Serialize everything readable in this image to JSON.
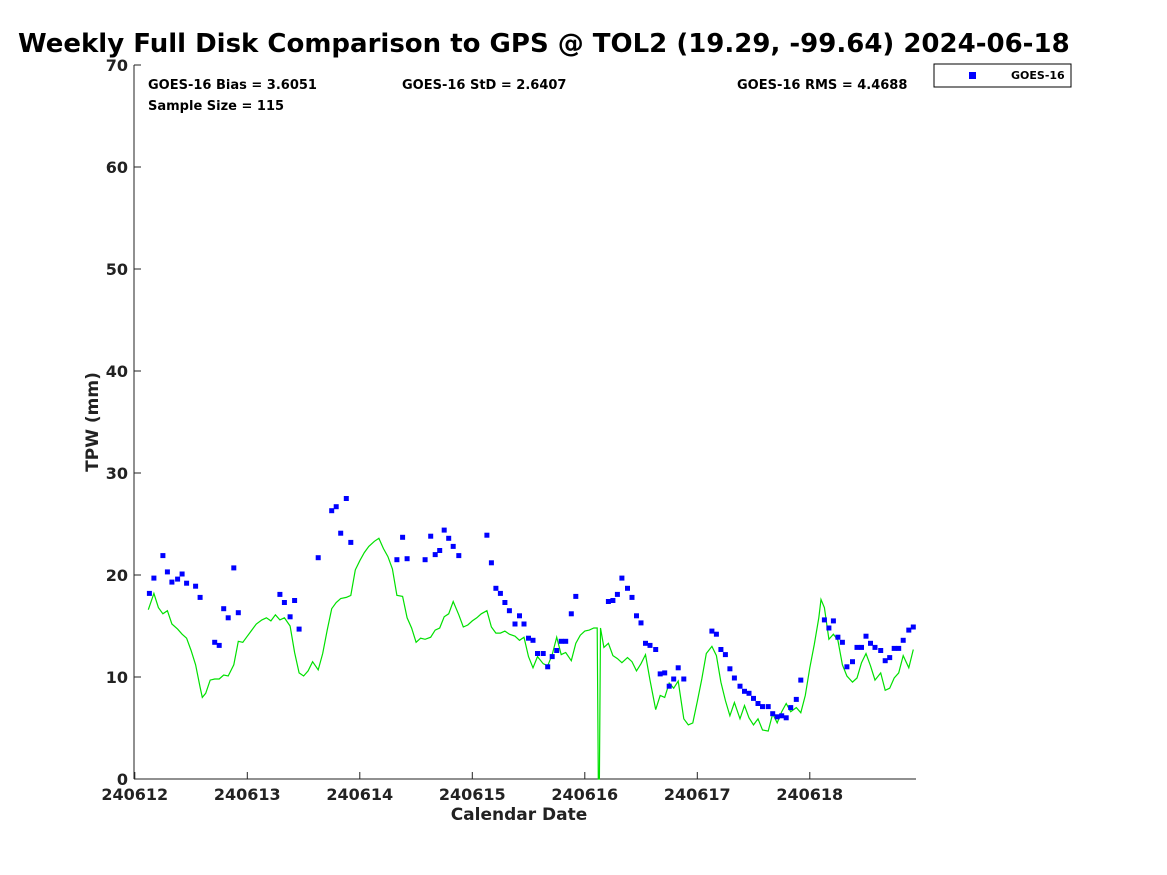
{
  "chart_data": {
    "type": "scatter",
    "title": "Weekly Full Disk Comparison to GPS @ TOL2 (19.29, -99.64) 2024-06-18",
    "xlabel": "Calendar Date",
    "ylabel": "TPW (mm)",
    "xlim": [
      240612,
      240619
    ],
    "ylim": [
      0,
      70
    ],
    "x_ticks": [
      "240612",
      "240613",
      "240614",
      "240615",
      "240616",
      "240617",
      "240618"
    ],
    "y_ticks": [
      "0",
      "10",
      "20",
      "30",
      "40",
      "50",
      "60",
      "70"
    ],
    "grid": false,
    "legend_position": "top-right outside plot",
    "stats": {
      "bias": "GOES-16 Bias = 3.6051",
      "std": "GOES-16 StD = 2.6407",
      "rms": "GOES-16 RMS = 4.4688",
      "sample": "Sample Size = 115"
    },
    "series": [
      {
        "name": "GOES-16",
        "kind": "scatter",
        "color": "#0000ff",
        "marker": "square",
        "points": [
          [
            0.13,
            18.2
          ],
          [
            0.17,
            19.7
          ],
          [
            0.25,
            21.9
          ],
          [
            0.29,
            20.3
          ],
          [
            0.33,
            19.3
          ],
          [
            0.38,
            19.6
          ],
          [
            0.42,
            20.1
          ],
          [
            0.46,
            19.2
          ],
          [
            0.54,
            18.9
          ],
          [
            0.58,
            17.8
          ],
          [
            0.71,
            13.4
          ],
          [
            0.75,
            13.1
          ],
          [
            0.79,
            16.7
          ],
          [
            0.83,
            15.8
          ],
          [
            0.88,
            20.7
          ],
          [
            0.92,
            16.3
          ],
          [
            1.29,
            18.1
          ],
          [
            1.33,
            17.3
          ],
          [
            1.38,
            15.9
          ],
          [
            1.42,
            17.5
          ],
          [
            1.46,
            14.7
          ],
          [
            1.63,
            21.7
          ],
          [
            1.75,
            26.3
          ],
          [
            1.79,
            26.7
          ],
          [
            1.83,
            24.1
          ],
          [
            1.88,
            27.5
          ],
          [
            1.92,
            23.2
          ],
          [
            2.33,
            21.5
          ],
          [
            2.38,
            23.7
          ],
          [
            2.42,
            21.6
          ],
          [
            2.58,
            21.5
          ],
          [
            2.63,
            23.8
          ],
          [
            2.67,
            22.0
          ],
          [
            2.71,
            22.4
          ],
          [
            2.75,
            24.4
          ],
          [
            2.79,
            23.6
          ],
          [
            2.83,
            22.8
          ],
          [
            2.88,
            21.9
          ],
          [
            3.13,
            23.9
          ],
          [
            3.17,
            21.2
          ],
          [
            3.21,
            18.7
          ],
          [
            3.25,
            18.2
          ],
          [
            3.29,
            17.3
          ],
          [
            3.33,
            16.5
          ],
          [
            3.38,
            15.2
          ],
          [
            3.42,
            16.0
          ],
          [
            3.46,
            15.2
          ],
          [
            3.5,
            13.8
          ],
          [
            3.54,
            13.6
          ],
          [
            3.58,
            12.3
          ],
          [
            3.63,
            12.3
          ],
          [
            3.67,
            11.0
          ],
          [
            3.71,
            12.0
          ],
          [
            3.75,
            12.6
          ],
          [
            3.79,
            13.5
          ],
          [
            3.83,
            13.5
          ],
          [
            3.88,
            16.2
          ],
          [
            3.92,
            17.9
          ],
          [
            4.21,
            17.4
          ],
          [
            4.25,
            17.5
          ],
          [
            4.29,
            18.1
          ],
          [
            4.33,
            19.7
          ],
          [
            4.38,
            18.7
          ],
          [
            4.42,
            17.8
          ],
          [
            4.46,
            16.0
          ],
          [
            4.5,
            15.3
          ],
          [
            4.54,
            13.3
          ],
          [
            4.58,
            13.1
          ],
          [
            4.63,
            12.7
          ],
          [
            4.67,
            10.3
          ],
          [
            4.71,
            10.4
          ],
          [
            4.75,
            9.1
          ],
          [
            4.79,
            9.8
          ],
          [
            4.83,
            10.9
          ],
          [
            4.88,
            9.8
          ],
          [
            5.13,
            14.5
          ],
          [
            5.17,
            14.2
          ],
          [
            5.21,
            12.7
          ],
          [
            5.25,
            12.2
          ],
          [
            5.29,
            10.8
          ],
          [
            5.33,
            9.9
          ],
          [
            5.38,
            9.1
          ],
          [
            5.42,
            8.6
          ],
          [
            5.46,
            8.4
          ],
          [
            5.5,
            7.9
          ],
          [
            5.54,
            7.4
          ],
          [
            5.58,
            7.1
          ],
          [
            5.63,
            7.1
          ],
          [
            5.67,
            6.4
          ],
          [
            5.71,
            6.1
          ],
          [
            5.75,
            6.2
          ],
          [
            5.79,
            6.0
          ],
          [
            5.83,
            7.0
          ],
          [
            5.88,
            7.8
          ],
          [
            5.92,
            9.7
          ],
          [
            6.13,
            15.6
          ],
          [
            6.17,
            14.8
          ],
          [
            6.21,
            15.5
          ],
          [
            6.25,
            13.9
          ],
          [
            6.29,
            13.4
          ],
          [
            6.33,
            11.0
          ],
          [
            6.38,
            11.5
          ],
          [
            6.42,
            12.9
          ],
          [
            6.46,
            12.9
          ],
          [
            6.5,
            14.0
          ],
          [
            6.54,
            13.3
          ],
          [
            6.58,
            12.9
          ],
          [
            6.63,
            12.6
          ],
          [
            6.67,
            11.6
          ],
          [
            6.71,
            11.9
          ],
          [
            6.75,
            12.8
          ],
          [
            6.79,
            12.8
          ],
          [
            6.83,
            13.6
          ],
          [
            6.88,
            14.6
          ],
          [
            6.92,
            14.9
          ]
        ]
      },
      {
        "name": "GPS",
        "kind": "line",
        "color": "#00e000",
        "points": [
          [
            0.12,
            16.6
          ],
          [
            0.17,
            18.2
          ],
          [
            0.21,
            16.8
          ],
          [
            0.25,
            16.2
          ],
          [
            0.29,
            16.5
          ],
          [
            0.33,
            15.2
          ],
          [
            0.38,
            14.7
          ],
          [
            0.42,
            14.2
          ],
          [
            0.46,
            13.8
          ],
          [
            0.5,
            12.6
          ],
          [
            0.54,
            11.2
          ],
          [
            0.58,
            9.0
          ],
          [
            0.6,
            8.0
          ],
          [
            0.63,
            8.4
          ],
          [
            0.67,
            9.7
          ],
          [
            0.71,
            9.8
          ],
          [
            0.75,
            9.8
          ],
          [
            0.79,
            10.2
          ],
          [
            0.83,
            10.1
          ],
          [
            0.88,
            11.2
          ],
          [
            0.92,
            13.5
          ],
          [
            0.96,
            13.4
          ],
          [
            1.0,
            14.0
          ],
          [
            1.04,
            14.6
          ],
          [
            1.08,
            15.2
          ],
          [
            1.13,
            15.6
          ],
          [
            1.17,
            15.8
          ],
          [
            1.21,
            15.5
          ],
          [
            1.25,
            16.1
          ],
          [
            1.29,
            15.6
          ],
          [
            1.33,
            15.8
          ],
          [
            1.38,
            15.0
          ],
          [
            1.42,
            12.4
          ],
          [
            1.46,
            10.4
          ],
          [
            1.5,
            10.1
          ],
          [
            1.54,
            10.6
          ],
          [
            1.58,
            11.5
          ],
          [
            1.63,
            10.7
          ],
          [
            1.67,
            12.3
          ],
          [
            1.71,
            14.6
          ],
          [
            1.75,
            16.7
          ],
          [
            1.79,
            17.3
          ],
          [
            1.83,
            17.7
          ],
          [
            1.88,
            17.8
          ],
          [
            1.92,
            18.0
          ],
          [
            1.96,
            20.5
          ],
          [
            2.0,
            21.4
          ],
          [
            2.04,
            22.2
          ],
          [
            2.08,
            22.8
          ],
          [
            2.13,
            23.3
          ],
          [
            2.17,
            23.6
          ],
          [
            2.21,
            22.6
          ],
          [
            2.25,
            21.8
          ],
          [
            2.29,
            20.6
          ],
          [
            2.33,
            18.0
          ],
          [
            2.38,
            17.9
          ],
          [
            2.42,
            15.8
          ],
          [
            2.46,
            14.8
          ],
          [
            2.5,
            13.4
          ],
          [
            2.54,
            13.8
          ],
          [
            2.58,
            13.7
          ],
          [
            2.63,
            13.9
          ],
          [
            2.67,
            14.6
          ],
          [
            2.71,
            14.8
          ],
          [
            2.75,
            15.9
          ],
          [
            2.79,
            16.2
          ],
          [
            2.83,
            17.4
          ],
          [
            2.88,
            16.1
          ],
          [
            2.92,
            14.9
          ],
          [
            2.96,
            15.1
          ],
          [
            3.0,
            15.5
          ],
          [
            3.04,
            15.8
          ],
          [
            3.08,
            16.2
          ],
          [
            3.13,
            16.5
          ],
          [
            3.17,
            14.9
          ],
          [
            3.21,
            14.3
          ],
          [
            3.25,
            14.3
          ],
          [
            3.29,
            14.5
          ],
          [
            3.33,
            14.2
          ],
          [
            3.38,
            14.0
          ],
          [
            3.42,
            13.6
          ],
          [
            3.46,
            13.9
          ],
          [
            3.5,
            12.0
          ],
          [
            3.54,
            10.9
          ],
          [
            3.58,
            12.0
          ],
          [
            3.63,
            11.3
          ],
          [
            3.67,
            11.1
          ],
          [
            3.71,
            12.2
          ],
          [
            3.75,
            13.9
          ],
          [
            3.79,
            12.2
          ],
          [
            3.83,
            12.4
          ],
          [
            3.88,
            11.6
          ],
          [
            3.92,
            13.3
          ],
          [
            3.96,
            14.1
          ],
          [
            4.0,
            14.5
          ],
          [
            4.04,
            14.6
          ],
          [
            4.08,
            14.8
          ],
          [
            4.11,
            14.8
          ],
          [
            4.12,
            0.0
          ],
          [
            4.13,
            0.0
          ],
          [
            4.14,
            14.8
          ],
          [
            4.17,
            12.9
          ],
          [
            4.21,
            13.3
          ],
          [
            4.25,
            12.1
          ],
          [
            4.29,
            11.8
          ],
          [
            4.33,
            11.4
          ],
          [
            4.38,
            11.9
          ],
          [
            4.42,
            11.5
          ],
          [
            4.46,
            10.6
          ],
          [
            4.5,
            11.3
          ],
          [
            4.54,
            12.2
          ],
          [
            4.58,
            9.7
          ],
          [
            4.63,
            6.8
          ],
          [
            4.67,
            8.2
          ],
          [
            4.71,
            8.0
          ],
          [
            4.75,
            9.4
          ],
          [
            4.79,
            8.9
          ],
          [
            4.83,
            9.6
          ],
          [
            4.88,
            5.9
          ],
          [
            4.92,
            5.3
          ],
          [
            4.96,
            5.5
          ],
          [
            5.0,
            7.6
          ],
          [
            5.04,
            9.8
          ],
          [
            5.08,
            12.3
          ],
          [
            5.13,
            13.0
          ],
          [
            5.17,
            12.1
          ],
          [
            5.21,
            9.5
          ],
          [
            5.25,
            7.7
          ],
          [
            5.29,
            6.2
          ],
          [
            5.33,
            7.5
          ],
          [
            5.38,
            5.9
          ],
          [
            5.42,
            7.2
          ],
          [
            5.46,
            6.0
          ],
          [
            5.5,
            5.3
          ],
          [
            5.54,
            5.9
          ],
          [
            5.58,
            4.8
          ],
          [
            5.63,
            4.7
          ],
          [
            5.67,
            6.4
          ],
          [
            5.71,
            5.5
          ],
          [
            5.75,
            6.6
          ],
          [
            5.79,
            7.4
          ],
          [
            5.83,
            6.6
          ],
          [
            5.88,
            7.0
          ],
          [
            5.92,
            6.5
          ],
          [
            5.96,
            8.2
          ],
          [
            6.0,
            10.9
          ],
          [
            6.04,
            13.2
          ],
          [
            6.08,
            15.8
          ],
          [
            6.1,
            17.6
          ],
          [
            6.13,
            16.8
          ],
          [
            6.17,
            13.7
          ],
          [
            6.21,
            14.2
          ],
          [
            6.25,
            13.6
          ],
          [
            6.29,
            11.2
          ],
          [
            6.33,
            10.1
          ],
          [
            6.38,
            9.5
          ],
          [
            6.42,
            9.9
          ],
          [
            6.46,
            11.4
          ],
          [
            6.5,
            12.3
          ],
          [
            6.54,
            11.1
          ],
          [
            6.58,
            9.7
          ],
          [
            6.63,
            10.4
          ],
          [
            6.67,
            8.7
          ],
          [
            6.71,
            8.9
          ],
          [
            6.75,
            9.9
          ],
          [
            6.79,
            10.4
          ],
          [
            6.83,
            12.1
          ],
          [
            6.88,
            10.9
          ],
          [
            6.92,
            12.7
          ]
        ]
      }
    ]
  }
}
